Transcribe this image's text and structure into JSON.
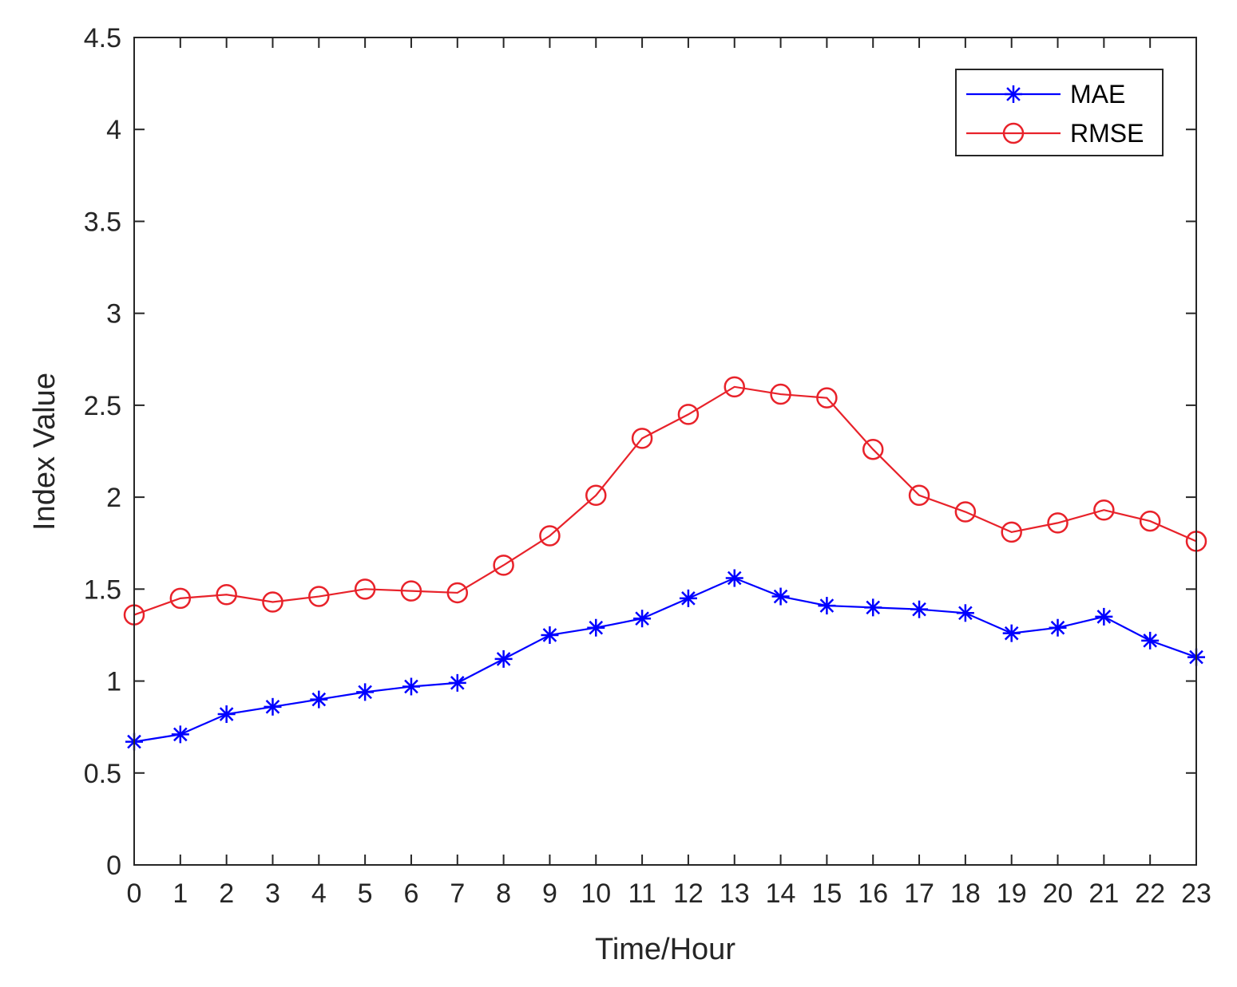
{
  "chart_data": {
    "type": "line",
    "title": "",
    "xlabel": "Time/Hour",
    "ylabel": "Index Value",
    "x": [
      0,
      1,
      2,
      3,
      4,
      5,
      6,
      7,
      8,
      9,
      10,
      11,
      12,
      13,
      14,
      15,
      16,
      17,
      18,
      19,
      20,
      21,
      22,
      23
    ],
    "xlim": [
      0,
      23
    ],
    "ylim": [
      0,
      4.5
    ],
    "xticks": [
      "0",
      "1",
      "2",
      "3",
      "4",
      "5",
      "6",
      "7",
      "8",
      "9",
      "10",
      "11",
      "12",
      "13",
      "14",
      "15",
      "16",
      "17",
      "18",
      "19",
      "20",
      "21",
      "22",
      "23"
    ],
    "yticks": [
      "0",
      "0.5",
      "1",
      "1.5",
      "2",
      "2.5",
      "3",
      "3.5",
      "4",
      "4.5"
    ],
    "grid": false,
    "legend_position": "top-right",
    "series": [
      {
        "name": "MAE",
        "color": "#0000ff",
        "marker": "asterisk",
        "values": [
          0.67,
          0.71,
          0.82,
          0.86,
          0.9,
          0.94,
          0.97,
          0.99,
          1.12,
          1.25,
          1.29,
          1.34,
          1.45,
          1.56,
          1.46,
          1.41,
          1.4,
          1.39,
          1.37,
          1.26,
          1.29,
          1.35,
          1.22,
          1.13
        ]
      },
      {
        "name": "RMSE",
        "color": "#e8222a",
        "marker": "circle",
        "values": [
          1.36,
          1.45,
          1.47,
          1.43,
          1.46,
          1.5,
          1.49,
          1.48,
          1.63,
          1.79,
          2.01,
          2.32,
          2.45,
          2.6,
          2.56,
          2.54,
          2.26,
          2.01,
          1.92,
          1.81,
          1.86,
          1.93,
          1.87,
          1.76
        ]
      }
    ]
  }
}
